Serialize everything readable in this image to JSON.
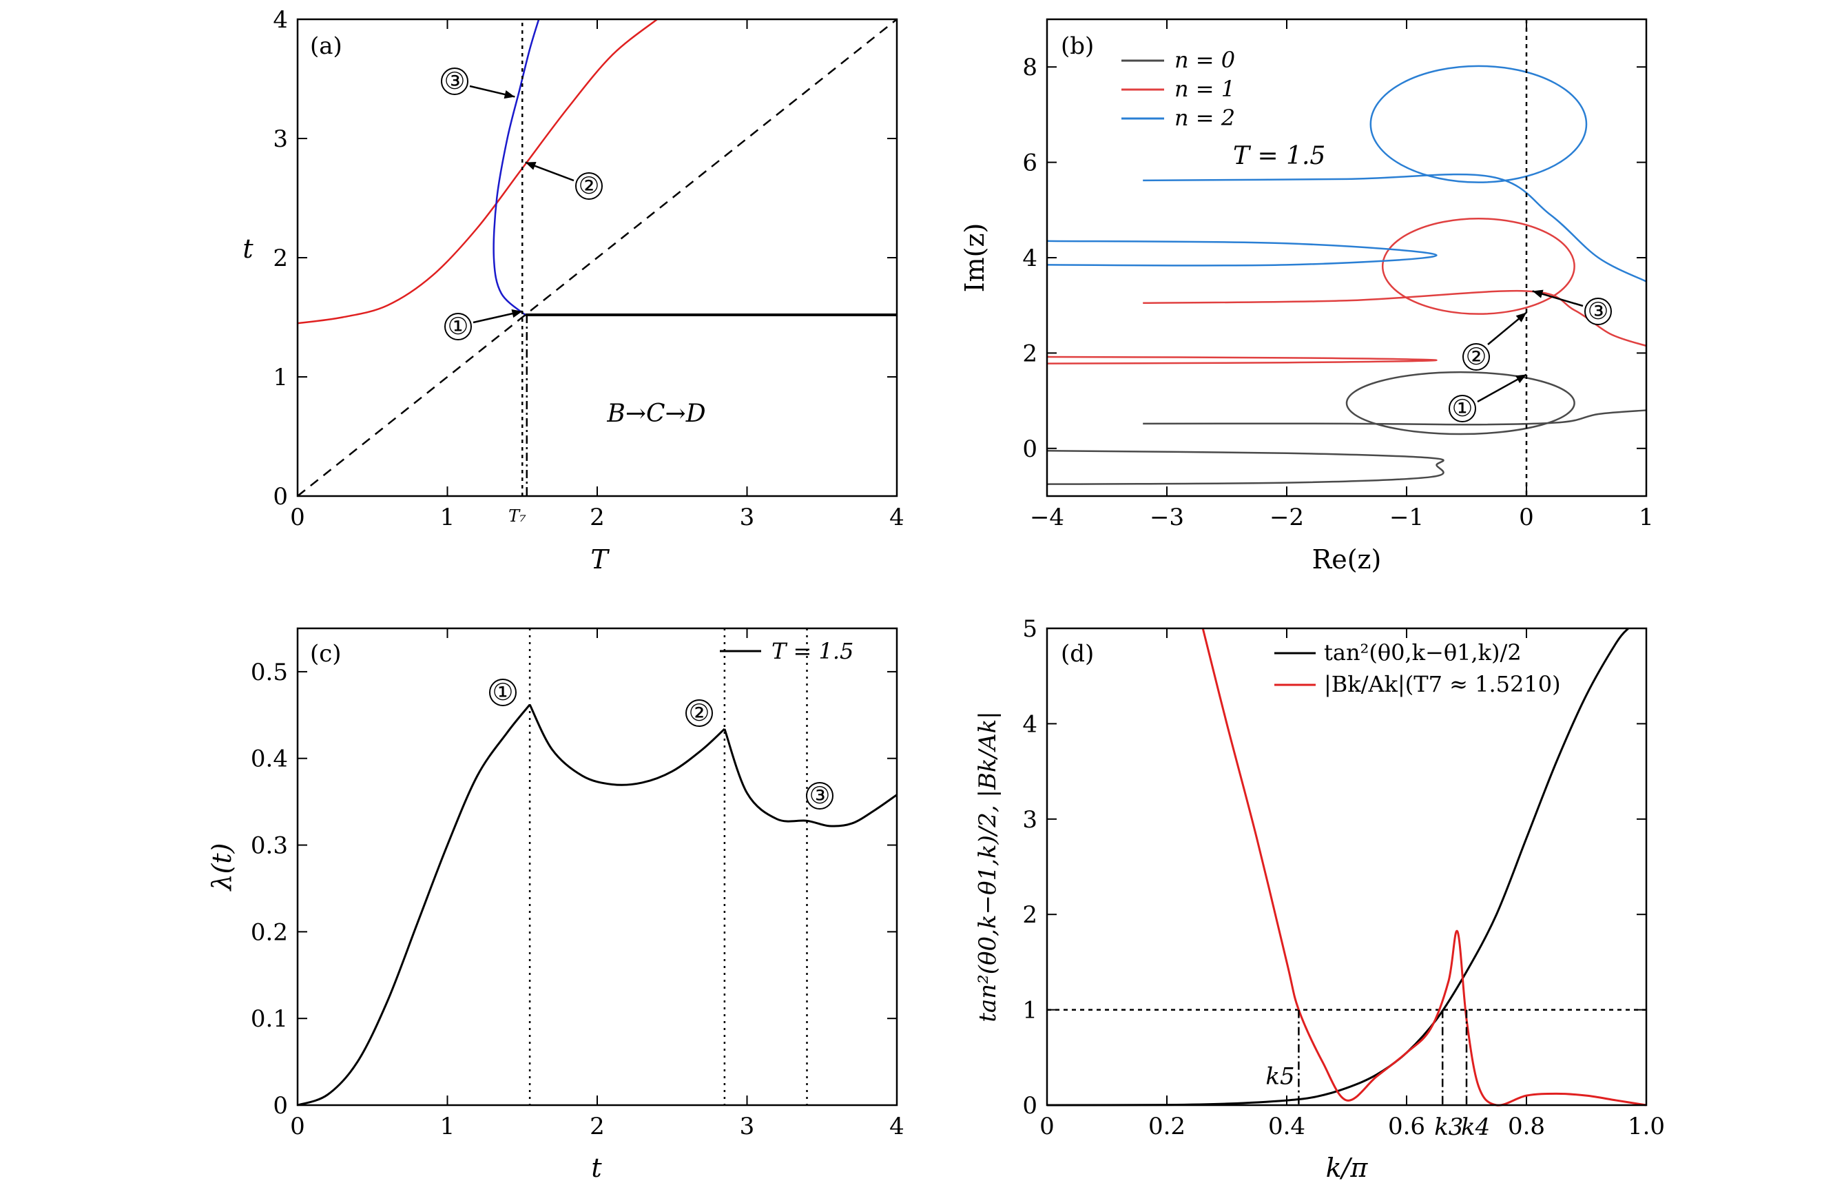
{
  "chart_data": [
    {
      "panel": "(a)",
      "type": "line",
      "xlabel": "T",
      "ylabel": "t",
      "xlim": [
        0,
        4
      ],
      "ylim": [
        0,
        4
      ],
      "xticks": [
        "0",
        "1",
        "2",
        "3",
        "4"
      ],
      "yticks": [
        "0",
        "1",
        "2",
        "3",
        "4"
      ],
      "extra_tick_label": "T₇",
      "region_text": "B→C→D",
      "markers": [
        "①",
        "②",
        "③"
      ],
      "colors": {
        "red": "#e02020",
        "blue": "#1a1acc",
        "black": "#000000"
      },
      "series": [
        {
          "name": "red curve",
          "color": "#e02020",
          "x": [
            0,
            0.3,
            0.6,
            0.9,
            1.2,
            1.5,
            1.8,
            2.1,
            2.4
          ],
          "y": [
            1.45,
            1.5,
            1.6,
            1.85,
            2.25,
            2.75,
            3.25,
            3.7,
            4.0
          ]
        },
        {
          "name": "blue curve",
          "color": "#1a1acc",
          "x": [
            1.52,
            1.36,
            1.31,
            1.33,
            1.4,
            1.48,
            1.55,
            1.61
          ],
          "y": [
            1.52,
            1.7,
            2.0,
            2.5,
            3.0,
            3.4,
            3.75,
            4.0
          ]
        },
        {
          "name": "dashed diagonal t=T",
          "color": "#000000",
          "x": [
            0,
            4
          ],
          "y": [
            0,
            4
          ]
        },
        {
          "name": "solid line t=1.52",
          "color": "#000000",
          "x": [
            1.52,
            4
          ],
          "y": [
            1.52,
            1.52
          ]
        },
        {
          "name": "dotted vertical T7",
          "color": "#000000",
          "x": [
            1.5,
            1.5
          ],
          "y": [
            0,
            4
          ]
        }
      ]
    },
    {
      "panel": "(b)",
      "type": "line",
      "xlabel": "Re(z)",
      "ylabel": "Im(z)",
      "xlim": [
        -4,
        1
      ],
      "ylim": [
        -1,
        9
      ],
      "xticks": [
        "−4",
        "−3",
        "−2",
        "−1",
        "0",
        "1"
      ],
      "yticks": [
        "0",
        "2",
        "4",
        "6",
        "8"
      ],
      "legend": [
        {
          "label": "n = 0",
          "color": "#4a4a4a"
        },
        {
          "label": "n = 1",
          "color": "#e04040"
        },
        {
          "label": "n = 2",
          "color": "#2a7fd4"
        }
      ],
      "annotation": "T = 1.5",
      "markers": [
        "①",
        "②",
        "③"
      ],
      "series": [
        {
          "name": "n=0 hairpin",
          "color": "#4a4a4a",
          "x": [
            -4,
            -2,
            -0.8,
            -0.75,
            -0.8,
            -2,
            -4
          ],
          "y": [
            -0.05,
            -0.1,
            -0.2,
            -0.35,
            -0.6,
            -0.72,
            -0.75
          ]
        },
        {
          "name": "n=0 loop+tail",
          "color": "#4a4a4a",
          "x": [
            -3.2,
            -1.5,
            -0.4,
            0.3,
            0.6,
            1.0
          ],
          "y": [
            0.52,
            0.52,
            0.5,
            0.55,
            0.72,
            0.8
          ]
        },
        {
          "name": "n=1 hairpin",
          "color": "#e04040",
          "x": [
            -4,
            -2,
            -0.75,
            -2,
            -4
          ],
          "y": [
            1.92,
            1.9,
            1.85,
            1.8,
            1.78
          ]
        },
        {
          "name": "n=1 loop+tail",
          "color": "#e04040",
          "x": [
            -3.2,
            -1.5,
            0.0,
            0.4,
            0.7,
            1.0
          ],
          "y": [
            3.05,
            3.1,
            3.3,
            2.9,
            2.4,
            2.15
          ]
        },
        {
          "name": "n=2 hairpin",
          "color": "#2a7fd4",
          "x": [
            -4,
            -2,
            -0.75,
            -2,
            -4
          ],
          "y": [
            4.35,
            4.3,
            4.05,
            3.85,
            3.85
          ]
        },
        {
          "name": "n=2 loop+tail",
          "color": "#2a7fd4",
          "x": [
            -3.2,
            -1.5,
            -0.3,
            0.2,
            0.6,
            1.0
          ],
          "y": [
            5.62,
            5.65,
            5.7,
            4.9,
            4.0,
            3.5
          ]
        }
      ]
    },
    {
      "panel": "(c)",
      "type": "line",
      "xlabel": "t",
      "ylabel": "λ(t)",
      "xlim": [
        0,
        4
      ],
      "ylim": [
        0,
        0.55
      ],
      "xticks": [
        "0",
        "1",
        "2",
        "3",
        "4"
      ],
      "yticks": [
        "0",
        "0.1",
        "0.2",
        "0.3",
        "0.4",
        "0.5"
      ],
      "legend": [
        {
          "label": "T = 1.5",
          "color": "#000000"
        }
      ],
      "markers": [
        "①",
        "②",
        "③"
      ],
      "vlines_t": [
        1.55,
        2.85,
        3.4
      ],
      "series": [
        {
          "name": "λ(t)",
          "color": "#000000",
          "x": [
            0,
            0.2,
            0.4,
            0.6,
            0.8,
            1.0,
            1.2,
            1.4,
            1.55,
            1.7,
            1.9,
            2.1,
            2.3,
            2.5,
            2.7,
            2.85,
            3.0,
            3.2,
            3.4,
            3.55,
            3.7,
            3.85,
            4.0
          ],
          "y": [
            0,
            0.012,
            0.05,
            0.12,
            0.21,
            0.3,
            0.38,
            0.43,
            0.462,
            0.41,
            0.38,
            0.37,
            0.372,
            0.385,
            0.41,
            0.434,
            0.36,
            0.33,
            0.328,
            0.322,
            0.325,
            0.34,
            0.358
          ]
        }
      ]
    },
    {
      "panel": "(d)",
      "type": "line",
      "xlabel": "k/π",
      "ylabel": "tan²(θ0,k−θ1,k)/2, |Bk/Ak|",
      "xlim": [
        0,
        1.0
      ],
      "ylim": [
        0,
        5
      ],
      "xticks": [
        "0",
        "0.2",
        "0.4",
        "0.6",
        "0.8",
        "1.0"
      ],
      "yticks": [
        "0",
        "1",
        "2",
        "3",
        "4",
        "5"
      ],
      "legend": [
        {
          "label": "tan²(θ0,k−θ1,k)/2",
          "color": "#000000"
        },
        {
          "label": "|Bk/Ak|(T7 ≈ 1.5210)",
          "color": "#e02020"
        }
      ],
      "hline_y": 1,
      "k_markers": [
        {
          "label": "k5",
          "x": 0.42
        },
        {
          "label": "k3",
          "x": 0.66
        },
        {
          "label": "k4",
          "x": 0.7
        }
      ],
      "series": [
        {
          "name": "tan²(θ0,k−θ1,k)/2",
          "color": "#000000",
          "x": [
            0,
            0.2,
            0.3,
            0.4,
            0.45,
            0.5,
            0.55,
            0.6,
            0.65,
            0.7,
            0.75,
            0.8,
            0.85,
            0.9,
            0.95,
            0.97
          ],
          "y": [
            0,
            0.003,
            0.015,
            0.05,
            0.09,
            0.18,
            0.32,
            0.55,
            0.9,
            1.4,
            2.0,
            2.8,
            3.6,
            4.3,
            4.85,
            5.0
          ]
        },
        {
          "name": "|Bk/Ak|(T7 ≈ 1.5210)",
          "color": "#e02020",
          "x": [
            0.26,
            0.3,
            0.35,
            0.4,
            0.42,
            0.46,
            0.5,
            0.55,
            0.6,
            0.64,
            0.67,
            0.685,
            0.7,
            0.72,
            0.75,
            0.8,
            0.85,
            0.9,
            0.95,
            1.0
          ],
          "y": [
            5.0,
            4.0,
            2.8,
            1.5,
            1.0,
            0.45,
            0.05,
            0.3,
            0.55,
            0.8,
            1.3,
            1.82,
            0.9,
            0.2,
            0.0,
            0.1,
            0.12,
            0.1,
            0.05,
            0.0
          ]
        }
      ]
    }
  ]
}
